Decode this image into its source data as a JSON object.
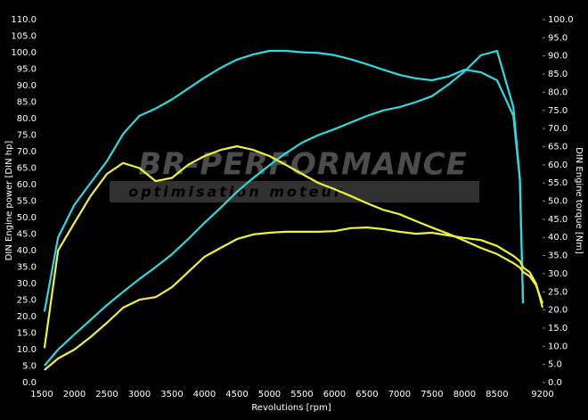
{
  "chart_data": {
    "type": "line",
    "xlabel": "Revolutions [rpm]",
    "ylabel": "DIN Engine power [DIN hp]",
    "y2label": "DIN Engine torque [Nm]",
    "watermark": {
      "brand": "BR-PERFORMANCE",
      "tagline": "optimisation moteur"
    },
    "grid": true,
    "xlim": [
      1500,
      9200
    ],
    "xticks": [
      1500,
      2000,
      2500,
      3000,
      3500,
      4000,
      4500,
      5000,
      5500,
      6000,
      6500,
      7000,
      7500,
      8000,
      8500,
      9200
    ],
    "ylim": [
      0,
      110
    ],
    "yticks": [
      {
        "value": 0,
        "label": "0.0"
      },
      {
        "value": 5,
        "label": "5.0"
      },
      {
        "value": 10,
        "label": "10.0"
      },
      {
        "value": 15,
        "label": "15.0"
      },
      {
        "value": 20,
        "label": "20.0"
      },
      {
        "value": 25,
        "label": "25.0"
      },
      {
        "value": 30,
        "label": "30.0"
      },
      {
        "value": 35,
        "label": "35.0"
      },
      {
        "value": 40,
        "label": "40.0"
      },
      {
        "value": 45,
        "label": "45.0"
      },
      {
        "value": 50,
        "label": "50.0"
      },
      {
        "value": 55,
        "label": "55.0"
      },
      {
        "value": 60,
        "label": "60.0"
      },
      {
        "value": 65,
        "label": "65.0"
      },
      {
        "value": 70,
        "label": "70.0"
      },
      {
        "value": 75,
        "label": "75.0"
      },
      {
        "value": 80,
        "label": "80.0"
      },
      {
        "value": 85,
        "label": "85.0"
      },
      {
        "value": 90,
        "label": "90.0"
      },
      {
        "value": 95,
        "label": "95.0"
      },
      {
        "value": 100,
        "label": "100.0"
      },
      {
        "value": 105,
        "label": "105.0"
      },
      {
        "value": 110,
        "label": "110.0"
      }
    ],
    "y2lim": [
      0,
      100
    ],
    "y2ticks": [
      {
        "value": 0,
        "label": "0.0"
      },
      {
        "value": 5,
        "label": "5.0"
      },
      {
        "value": 10,
        "label": "10.0"
      },
      {
        "value": 15,
        "label": "15.0"
      },
      {
        "value": 20,
        "label": "20.0"
      },
      {
        "value": 25,
        "label": "25.0"
      },
      {
        "value": 30,
        "label": "30.0"
      },
      {
        "value": 35,
        "label": "35.0"
      },
      {
        "value": 40,
        "label": "40.0"
      },
      {
        "value": 45,
        "label": "45.0"
      },
      {
        "value": 50,
        "label": "50.0"
      },
      {
        "value": 55,
        "label": "55.0"
      },
      {
        "value": 60,
        "label": "60.0"
      },
      {
        "value": 65,
        "label": "65.0"
      },
      {
        "value": 70,
        "label": "70.0"
      },
      {
        "value": 75,
        "label": "75.0"
      },
      {
        "value": 80,
        "label": "80.0"
      },
      {
        "value": 85,
        "label": "85.0"
      },
      {
        "value": 90,
        "label": "90.0"
      },
      {
        "value": 95,
        "label": "95.0"
      },
      {
        "value": 100,
        "label": "100.0"
      }
    ],
    "x": [
      1540,
      1750,
      2000,
      2250,
      2500,
      2750,
      3000,
      3250,
      3500,
      3750,
      4000,
      4250,
      4500,
      4750,
      5000,
      5250,
      5500,
      5750,
      6000,
      6250,
      6500,
      6750,
      7000,
      7250,
      7500,
      7750,
      8000,
      8250,
      8500,
      8750,
      8850,
      8900,
      9000,
      9100,
      9200
    ],
    "series": [
      {
        "color": "#30d8e0",
        "axis": "y",
        "values": [
          5.1,
          10,
          14.6,
          19,
          23.5,
          27.5,
          31.4,
          35,
          38.9,
          43.5,
          48.4,
          53,
          57.8,
          62,
          65.9,
          69.5,
          72.7,
          75,
          76.8,
          78.8,
          80.8,
          82.5,
          83.5,
          85,
          86.8,
          90.3,
          94.3,
          99.2,
          100.5,
          83.5,
          61.9,
          24,
          null,
          null,
          null
        ]
      },
      {
        "color": "#30d8e0",
        "axis": "y2",
        "values": [
          19.5,
          40,
          49,
          55,
          61,
          68.5,
          73.5,
          75.5,
          78,
          81,
          84,
          86.7,
          89,
          90.4,
          91.4,
          91.4,
          91,
          90.8,
          90.2,
          89.1,
          87.7,
          86.2,
          84.8,
          83.8,
          83.3,
          84.3,
          86.2,
          85.5,
          83.3,
          73.5,
          56,
          21.8,
          null,
          null,
          null
        ]
      },
      {
        "color": "#f0f040",
        "axis": "y",
        "values": [
          3.8,
          7.3,
          10,
          13.8,
          18.1,
          22.7,
          25.1,
          25.9,
          28.9,
          33.5,
          38.1,
          40.8,
          43.5,
          44.9,
          45.4,
          45.7,
          45.7,
          45.7,
          45.9,
          46.8,
          47,
          46.5,
          45.7,
          45.1,
          45.4,
          44.6,
          43.8,
          43.2,
          41.4,
          38.4,
          36.8,
          34.9,
          33.5,
          30,
          22.7
        ]
      },
      {
        "color": "#f0f040",
        "axis": "y2",
        "values": [
          9.5,
          36.4,
          44,
          51.4,
          57.5,
          60.5,
          59.1,
          55.5,
          56.4,
          60,
          62.4,
          64.1,
          65.1,
          64.1,
          62.4,
          60,
          57.5,
          55,
          53.3,
          51.4,
          49.4,
          47.6,
          46.4,
          44.5,
          42.7,
          41,
          39.1,
          37.1,
          35.4,
          32.9,
          31.7,
          30.5,
          29.3,
          26.8,
          21.8
        ]
      }
    ]
  }
}
